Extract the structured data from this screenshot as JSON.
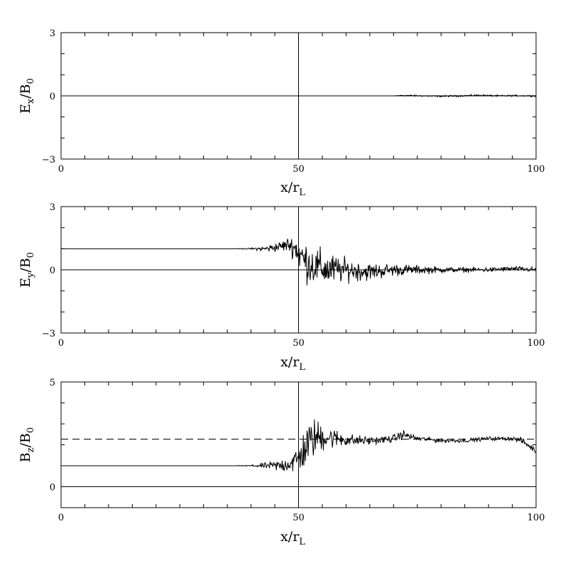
{
  "chart_data": [
    {
      "type": "line",
      "xlabel": {
        "main": "x/r",
        "sub": "L"
      },
      "ylabel": {
        "main": "E",
        "sub": "x",
        "tail": "/B",
        "sub2": "0"
      },
      "xlim": [
        0,
        100
      ],
      "ylim": [
        -3,
        3
      ],
      "xticks": [
        "0",
        "50",
        "100"
      ],
      "yticks": [
        "-3",
        "0",
        "3"
      ],
      "reference_lines": {
        "horizontal": [
          0
        ],
        "vertical": [
          50
        ],
        "dashed_horizontal": []
      },
      "series": [
        {
          "style": "noisy",
          "x": [
            0,
            70,
            72,
            76,
            80,
            84,
            88,
            92,
            96,
            100
          ],
          "y": [
            0,
            0,
            0.02,
            0.0,
            -0.02,
            0.0,
            0.03,
            0.0,
            0.01,
            0.0
          ],
          "noise": [
            0,
            0,
            0.03,
            0.03,
            0.03,
            0.03,
            0.03,
            0.03,
            0.03,
            0.03
          ]
        }
      ]
    },
    {
      "type": "line",
      "xlabel": {
        "main": "x/r",
        "sub": "L"
      },
      "ylabel": {
        "main": "E",
        "sub": "y",
        "tail": "/B",
        "sub2": "0"
      },
      "xlim": [
        0,
        100
      ],
      "ylim": [
        -3,
        3
      ],
      "xticks": [
        "0",
        "50",
        "100"
      ],
      "yticks": [
        "-3",
        "0",
        "3"
      ],
      "reference_lines": {
        "horizontal": [
          0
        ],
        "vertical": [
          50
        ],
        "dashed_horizontal": []
      },
      "series": [
        {
          "style": "noisy",
          "x": [
            0,
            36,
            40,
            43,
            46,
            48,
            49.5,
            51,
            53,
            56,
            60,
            65,
            70,
            75,
            80,
            85,
            90,
            95,
            100
          ],
          "y": [
            1,
            1,
            1.0,
            1.0,
            1.1,
            1.2,
            1.0,
            0.5,
            0.2,
            0.0,
            0.0,
            -0.1,
            0.0,
            0.0,
            0.0,
            0.0,
            0.0,
            0.05,
            0.0
          ],
          "noise": [
            0,
            0,
            0.03,
            0.12,
            0.2,
            0.3,
            0.55,
            0.8,
            0.8,
            0.7,
            0.45,
            0.35,
            0.25,
            0.18,
            0.12,
            0.1,
            0.1,
            0.1,
            0.1
          ]
        }
      ]
    },
    {
      "type": "line",
      "xlabel": {
        "main": "x/r",
        "sub": "L"
      },
      "ylabel": {
        "main": "B",
        "sub": "z",
        "tail": "/B",
        "sub2": "0"
      },
      "xlim": [
        0,
        100
      ],
      "ylim": [
        -1,
        5
      ],
      "xticks": [
        "0",
        "50",
        "100"
      ],
      "yticks": [
        "0",
        "5"
      ],
      "reference_lines": {
        "horizontal": [
          0
        ],
        "vertical": [
          50
        ],
        "dashed_horizontal": [
          2.27
        ]
      },
      "series": [
        {
          "style": "noisy",
          "x": [
            0,
            36,
            40,
            43,
            46,
            48,
            50,
            51.5,
            53,
            55,
            58,
            62,
            66,
            70,
            72,
            75,
            80,
            85,
            90,
            95,
            97,
            100
          ],
          "y": [
            1,
            1,
            1.0,
            1.0,
            1.0,
            1.1,
            1.3,
            1.9,
            2.3,
            2.4,
            2.3,
            2.2,
            2.2,
            2.3,
            2.5,
            2.3,
            2.2,
            2.2,
            2.3,
            2.3,
            2.2,
            1.7
          ],
          "noise": [
            0,
            0,
            0.03,
            0.12,
            0.25,
            0.35,
            0.6,
            0.85,
            0.8,
            0.6,
            0.35,
            0.22,
            0.15,
            0.15,
            0.18,
            0.1,
            0.08,
            0.08,
            0.08,
            0.08,
            0.12,
            0.12
          ]
        }
      ]
    }
  ]
}
